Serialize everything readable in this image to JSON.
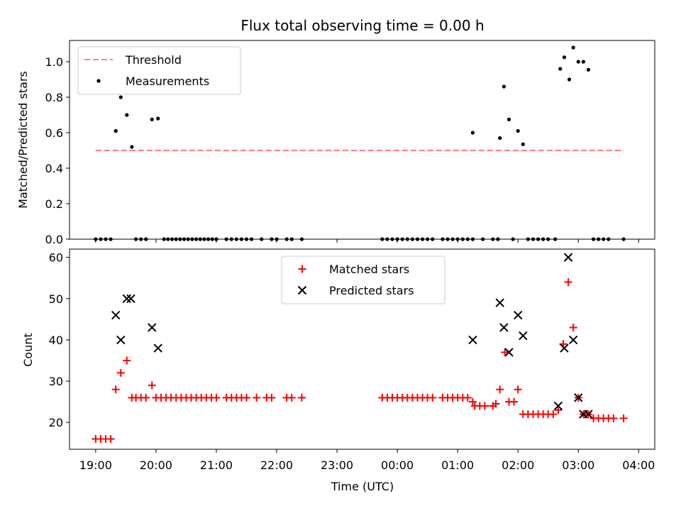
{
  "chart_data": [
    {
      "type": "scatter",
      "title": "Flux total observing time = 0.00 h",
      "xlabel": "",
      "ylabel": "Matched/Predicted stars",
      "xlim": [
        "18:34",
        "04:16"
      ],
      "ylim": [
        0,
        1.12
      ],
      "yticks": [
        0.0,
        0.2,
        0.4,
        0.6,
        0.8,
        1.0
      ],
      "ytick_labels": [
        "0.0",
        "0.2",
        "0.4",
        "0.6",
        "0.8",
        "1.0"
      ],
      "legend": {
        "position": "top-left",
        "entries": [
          "Threshold",
          "Measurements"
        ]
      },
      "threshold": {
        "name": "Threshold",
        "color": "#ff7f7f",
        "style": "dashed",
        "y": 0.5,
        "x_from": "19:00",
        "x_to": "03:45"
      },
      "series": [
        {
          "name": "Measurements",
          "color": "#000000",
          "marker": "dot",
          "points": [
            [
              "19:00",
              0
            ],
            [
              "19:05",
              0
            ],
            [
              "19:10",
              0
            ],
            [
              "19:15",
              0
            ],
            [
              "19:20",
              0.61
            ],
            [
              "19:25",
              0.8
            ],
            [
              "19:31",
              0.7
            ],
            [
              "19:36",
              0.52
            ],
            [
              "19:40",
              0
            ],
            [
              "19:45",
              0
            ],
            [
              "19:50",
              0
            ],
            [
              "19:56",
              0.675
            ],
            [
              "20:02",
              0.68
            ],
            [
              "20:08",
              0
            ],
            [
              "20:12",
              0
            ],
            [
              "20:16",
              0
            ],
            [
              "20:20",
              0
            ],
            [
              "20:24",
              0
            ],
            [
              "20:28",
              0
            ],
            [
              "20:32",
              0
            ],
            [
              "20:36",
              0
            ],
            [
              "20:40",
              0
            ],
            [
              "20:44",
              0
            ],
            [
              "20:48",
              0
            ],
            [
              "20:52",
              0
            ],
            [
              "20:56",
              0
            ],
            [
              "21:00",
              0
            ],
            [
              "21:10",
              0
            ],
            [
              "21:15",
              0
            ],
            [
              "21:20",
              0
            ],
            [
              "21:25",
              0
            ],
            [
              "21:30",
              0
            ],
            [
              "21:35",
              0
            ],
            [
              "21:45",
              0
            ],
            [
              "21:55",
              0
            ],
            [
              "22:00",
              0
            ],
            [
              "22:10",
              0
            ],
            [
              "22:15",
              0
            ],
            [
              "22:25",
              0
            ],
            [
              "23:45",
              0
            ],
            [
              "23:50",
              0
            ],
            [
              "23:55",
              0
            ],
            [
              "00:00",
              0
            ],
            [
              "00:05",
              0
            ],
            [
              "00:10",
              0
            ],
            [
              "00:15",
              0
            ],
            [
              "00:20",
              0
            ],
            [
              "00:25",
              0
            ],
            [
              "00:30",
              0
            ],
            [
              "00:35",
              0
            ],
            [
              "00:45",
              0
            ],
            [
              "00:50",
              0
            ],
            [
              "00:55",
              0
            ],
            [
              "01:00",
              0
            ],
            [
              "01:05",
              0
            ],
            [
              "01:10",
              0
            ],
            [
              "01:15",
              0
            ],
            [
              "01:15",
              0.6
            ],
            [
              "01:25",
              0
            ],
            [
              "01:35",
              0
            ],
            [
              "01:40",
              0
            ],
            [
              "01:42",
              0.57
            ],
            [
              "01:46",
              0.86
            ],
            [
              "01:51",
              0.675
            ],
            [
              "02:00",
              0.61
            ],
            [
              "02:05",
              0.535
            ],
            [
              "01:55",
              0
            ],
            [
              "02:10",
              0
            ],
            [
              "02:15",
              0
            ],
            [
              "02:20",
              0
            ],
            [
              "02:25",
              0
            ],
            [
              "02:30",
              0
            ],
            [
              "02:37",
              0
            ],
            [
              "02:42",
              0.96
            ],
            [
              "02:46",
              1.025
            ],
            [
              "02:51",
              0.9
            ],
            [
              "02:55",
              1.08
            ],
            [
              "03:00",
              1.0
            ],
            [
              "03:05",
              1.0
            ],
            [
              "03:10",
              0.955
            ],
            [
              "03:15",
              0
            ],
            [
              "03:20",
              0
            ],
            [
              "03:25",
              0
            ],
            [
              "03:30",
              0
            ],
            [
              "03:45",
              0
            ]
          ]
        }
      ]
    },
    {
      "type": "scatter",
      "title": "",
      "xlabel": "Time (UTC)",
      "ylabel": "Count",
      "xlim": [
        "18:34",
        "04:16"
      ],
      "ylim": [
        13.5,
        62
      ],
      "yticks": [
        20,
        30,
        40,
        50,
        60
      ],
      "ytick_labels": [
        "20",
        "30",
        "40",
        "50",
        "60"
      ],
      "xticks": [
        "19:00",
        "20:00",
        "21:00",
        "22:00",
        "23:00",
        "00:00",
        "01:00",
        "02:00",
        "03:00",
        "04:00"
      ],
      "xtick_labels": [
        "19:00",
        "20:00",
        "21:00",
        "22:00",
        "23:00",
        "00:00",
        "01:00",
        "02:00",
        "03:00",
        "04:00"
      ],
      "legend": {
        "position": "top-center",
        "entries": [
          "Matched stars",
          "Predicted stars"
        ]
      },
      "series": [
        {
          "name": "Matched stars",
          "color": "#ff0000",
          "marker": "plus",
          "points": [
            [
              "19:00",
              16
            ],
            [
              "19:05",
              16
            ],
            [
              "19:10",
              16
            ],
            [
              "19:15",
              16
            ],
            [
              "19:20",
              28
            ],
            [
              "19:25",
              32
            ],
            [
              "19:31",
              35
            ],
            [
              "19:36",
              26
            ],
            [
              "19:40",
              26
            ],
            [
              "19:45",
              26
            ],
            [
              "19:50",
              26
            ],
            [
              "19:56",
              29
            ],
            [
              "20:00",
              26
            ],
            [
              "20:05",
              26
            ],
            [
              "20:10",
              26
            ],
            [
              "20:15",
              26
            ],
            [
              "20:20",
              26
            ],
            [
              "20:25",
              26
            ],
            [
              "20:30",
              26
            ],
            [
              "20:35",
              26
            ],
            [
              "20:40",
              26
            ],
            [
              "20:45",
              26
            ],
            [
              "20:50",
              26
            ],
            [
              "20:55",
              26
            ],
            [
              "21:00",
              26
            ],
            [
              "21:10",
              26
            ],
            [
              "21:15",
              26
            ],
            [
              "21:20",
              26
            ],
            [
              "21:25",
              26
            ],
            [
              "21:30",
              26
            ],
            [
              "21:40",
              26
            ],
            [
              "21:50",
              26
            ],
            [
              "21:55",
              26
            ],
            [
              "22:10",
              26
            ],
            [
              "22:15",
              26
            ],
            [
              "22:25",
              26
            ],
            [
              "23:45",
              26
            ],
            [
              "23:50",
              26
            ],
            [
              "23:55",
              26
            ],
            [
              "00:00",
              26
            ],
            [
              "00:05",
              26
            ],
            [
              "00:10",
              26
            ],
            [
              "00:15",
              26
            ],
            [
              "00:20",
              26
            ],
            [
              "00:25",
              26
            ],
            [
              "00:30",
              26
            ],
            [
              "00:35",
              26
            ],
            [
              "00:45",
              26
            ],
            [
              "00:50",
              26
            ],
            [
              "00:55",
              26
            ],
            [
              "01:00",
              26
            ],
            [
              "01:05",
              26
            ],
            [
              "01:10",
              26
            ],
            [
              "01:15",
              25
            ],
            [
              "01:17",
              24
            ],
            [
              "01:22",
              24
            ],
            [
              "01:27",
              24
            ],
            [
              "01:35",
              24
            ],
            [
              "01:38",
              24.5
            ],
            [
              "01:42",
              28
            ],
            [
              "01:47",
              37
            ],
            [
              "01:51",
              25
            ],
            [
              "01:56",
              25
            ],
            [
              "02:00",
              28
            ],
            [
              "02:05",
              22
            ],
            [
              "02:10",
              22
            ],
            [
              "02:15",
              22
            ],
            [
              "02:20",
              22
            ],
            [
              "02:25",
              22
            ],
            [
              "02:30",
              22
            ],
            [
              "02:35",
              22
            ],
            [
              "02:40",
              23
            ],
            [
              "02:45",
              39
            ],
            [
              "02:50",
              54
            ],
            [
              "02:55",
              43
            ],
            [
              "03:00",
              26
            ],
            [
              "03:05",
              22
            ],
            [
              "03:10",
              22
            ],
            [
              "03:15",
              21
            ],
            [
              "03:20",
              21
            ],
            [
              "03:25",
              21
            ],
            [
              "03:30",
              21
            ],
            [
              "03:35",
              21
            ],
            [
              "03:45",
              21
            ]
          ]
        },
        {
          "name": "Predicted stars",
          "color": "#000000",
          "marker": "x",
          "points": [
            [
              "19:20",
              46
            ],
            [
              "19:25",
              40
            ],
            [
              "19:31",
              50
            ],
            [
              "19:35",
              50
            ],
            [
              "19:56",
              43
            ],
            [
              "20:02",
              38
            ],
            [
              "01:15",
              40
            ],
            [
              "01:42",
              49
            ],
            [
              "01:46",
              43
            ],
            [
              "01:51",
              37
            ],
            [
              "02:00",
              46
            ],
            [
              "02:05",
              41
            ],
            [
              "02:40",
              24
            ],
            [
              "02:46",
              38
            ],
            [
              "02:50",
              60
            ],
            [
              "02:55",
              40
            ],
            [
              "03:00",
              26
            ],
            [
              "03:05",
              22
            ],
            [
              "03:10",
              22
            ]
          ]
        }
      ]
    }
  ]
}
